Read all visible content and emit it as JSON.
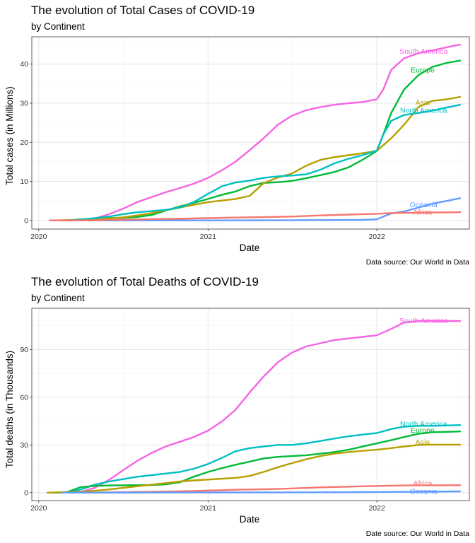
{
  "colors": {
    "Africa": "#F8766D",
    "Asia": "#B79F00",
    "Europe": "#00BA38",
    "North America": "#00BFC4",
    "Oceania": "#619CFF",
    "South America": "#F564E3"
  },
  "chart_data": [
    {
      "type": "line",
      "title": "The evolution of Total Cases of COVID-19",
      "subtitle": "by Continent",
      "xlabel": "Date",
      "ylabel": "Total cases (in Millions)",
      "caption": "Data source: Our World in Data",
      "xlim": [
        "2019-12-17",
        "2022-07-20"
      ],
      "ylim": [
        -2.2,
        47
      ],
      "x_ticks": [
        "2020-01-01",
        "2021-01-01",
        "2022-01-01"
      ],
      "x_tick_labels": [
        "2020",
        "2021",
        "2022"
      ],
      "y_ticks": [
        0,
        10,
        20,
        30,
        40
      ],
      "grid": true,
      "legend": "none (direct labels at line ends)",
      "series": [
        {
          "name": "South America",
          "x": [
            "2020-01-25",
            "2020-03-15",
            "2020-05-01",
            "2020-06-01",
            "2020-07-01",
            "2020-08-01",
            "2020-09-01",
            "2020-10-01",
            "2020-11-01",
            "2020-12-01",
            "2021-01-01",
            "2021-02-01",
            "2021-03-01",
            "2021-04-01",
            "2021-05-01",
            "2021-06-01",
            "2021-07-01",
            "2021-08-01",
            "2021-09-01",
            "2021-10-01",
            "2021-11-01",
            "2021-12-01",
            "2022-01-01",
            "2022-01-15",
            "2022-02-01",
            "2022-03-01",
            "2022-04-01",
            "2022-05-01",
            "2022-06-01",
            "2022-06-30"
          ],
          "values": [
            0,
            0,
            0.5,
            1.6,
            3.0,
            4.7,
            6.0,
            7.2,
            8.3,
            9.4,
            10.9,
            12.9,
            15.0,
            18.0,
            21.0,
            24.5,
            26.8,
            28.2,
            29.0,
            29.6,
            30.0,
            30.3,
            31.0,
            33.5,
            38.5,
            41.5,
            42.8,
            43.5,
            44.3,
            45.0
          ]
        },
        {
          "name": "Europe",
          "x": [
            "2020-01-25",
            "2020-03-01",
            "2020-04-01",
            "2020-05-01",
            "2020-06-01",
            "2020-07-01",
            "2020-08-01",
            "2020-09-01",
            "2020-10-01",
            "2020-11-01",
            "2020-12-01",
            "2021-01-01",
            "2021-02-01",
            "2021-03-01",
            "2021-04-01",
            "2021-05-01",
            "2021-06-01",
            "2021-07-01",
            "2021-08-01",
            "2021-09-01",
            "2021-10-01",
            "2021-11-01",
            "2021-12-01",
            "2022-01-01",
            "2022-01-15",
            "2022-02-01",
            "2022-03-01",
            "2022-04-01",
            "2022-05-01",
            "2022-06-01",
            "2022-06-30"
          ],
          "values": [
            0,
            0,
            0.3,
            0.5,
            0.6,
            0.7,
            0.9,
            1.4,
            2.5,
            3.6,
            4.5,
            5.5,
            6.6,
            7.4,
            8.8,
            9.6,
            9.8,
            10.1,
            10.8,
            11.6,
            12.4,
            13.6,
            15.5,
            17.8,
            22.0,
            27.5,
            33.5,
            37.2,
            39.3,
            40.3,
            40.9
          ]
        },
        {
          "name": "Asia",
          "x": [
            "2020-01-25",
            "2020-03-01",
            "2020-04-01",
            "2020-05-01",
            "2020-06-01",
            "2020-07-01",
            "2020-08-01",
            "2020-09-01",
            "2020-10-01",
            "2020-11-01",
            "2020-12-01",
            "2021-01-01",
            "2021-02-01",
            "2021-03-01",
            "2021-04-01",
            "2021-05-01",
            "2021-06-01",
            "2021-07-01",
            "2021-08-01",
            "2021-09-01",
            "2021-10-01",
            "2021-11-01",
            "2021-12-01",
            "2022-01-01",
            "2022-02-01",
            "2022-03-01",
            "2022-04-01",
            "2022-05-01",
            "2022-06-01",
            "2022-06-30"
          ],
          "values": [
            0,
            0.1,
            0.1,
            0.2,
            0.5,
            0.8,
            1.3,
            1.9,
            2.6,
            3.3,
            4.0,
            4.7,
            5.1,
            5.5,
            6.3,
            9.5,
            11.0,
            12.0,
            14.0,
            15.5,
            16.2,
            16.7,
            17.2,
            17.8,
            21.0,
            24.5,
            29.0,
            30.6,
            31.0,
            31.6
          ]
        },
        {
          "name": "North America",
          "x": [
            "2020-01-25",
            "2020-03-01",
            "2020-04-01",
            "2020-05-01",
            "2020-06-01",
            "2020-07-01",
            "2020-08-01",
            "2020-09-01",
            "2020-10-01",
            "2020-11-01",
            "2020-12-01",
            "2021-01-01",
            "2021-02-01",
            "2021-03-01",
            "2021-04-01",
            "2021-05-01",
            "2021-06-01",
            "2021-07-01",
            "2021-08-01",
            "2021-09-01",
            "2021-10-01",
            "2021-11-01",
            "2021-12-01",
            "2022-01-01",
            "2022-01-15",
            "2022-02-01",
            "2022-03-01",
            "2022-04-01",
            "2022-05-01",
            "2022-06-01",
            "2022-06-30"
          ],
          "values": [
            0,
            0,
            0.2,
            0.6,
            1.0,
            1.6,
            2.1,
            2.4,
            2.7,
            3.3,
            4.7,
            6.8,
            8.8,
            9.7,
            10.2,
            10.9,
            11.3,
            11.5,
            11.8,
            13.0,
            14.6,
            15.8,
            16.7,
            17.9,
            22.0,
            25.5,
            27.0,
            27.5,
            28.1,
            28.9,
            29.6
          ]
        },
        {
          "name": "Oceania",
          "x": [
            "2020-01-25",
            "2020-06-01",
            "2021-01-01",
            "2021-06-01",
            "2021-12-01",
            "2022-01-01",
            "2022-01-15",
            "2022-02-01",
            "2022-03-01",
            "2022-04-01",
            "2022-05-01",
            "2022-06-01",
            "2022-06-30"
          ],
          "values": [
            0,
            0,
            0.02,
            0.05,
            0.15,
            0.3,
            1.0,
            1.8,
            2.3,
            3.3,
            4.3,
            5.0,
            5.7
          ]
        },
        {
          "name": "Africa",
          "x": [
            "2020-01-25",
            "2020-05-01",
            "2020-07-01",
            "2020-09-01",
            "2020-11-01",
            "2021-01-01",
            "2021-03-01",
            "2021-05-01",
            "2021-07-01",
            "2021-09-01",
            "2021-11-01",
            "2022-01-01",
            "2022-02-01",
            "2022-04-01",
            "2022-06-30"
          ],
          "values": [
            0,
            0.05,
            0.2,
            0.35,
            0.45,
            0.6,
            0.75,
            0.85,
            1.0,
            1.3,
            1.5,
            1.7,
            1.9,
            2.0,
            2.1
          ]
        }
      ],
      "labels": [
        {
          "name": "South America",
          "text": "South America",
          "x": "2022-04-12",
          "y": 43.4
        },
        {
          "name": "Europe",
          "text": "Europe",
          "x": "2022-04-10",
          "y": 38.6
        },
        {
          "name": "Asia",
          "text": "Asia",
          "x": "2022-04-10",
          "y": 30.3
        },
        {
          "name": "North America",
          "text": "North America",
          "x": "2022-04-12",
          "y": 28.3
        },
        {
          "name": "Oceania",
          "text": "Oceania",
          "x": "2022-04-12",
          "y": 4.1
        },
        {
          "name": "Africa",
          "text": "Africa",
          "x": "2022-04-10",
          "y": 2.2
        }
      ]
    },
    {
      "type": "line",
      "title": "The evolution of Total Deaths of COVID-19",
      "subtitle": "by Continent",
      "xlabel": "Date",
      "ylabel": "Total deaths (in Thousands)",
      "caption": "Date source: Our World in Data",
      "xlim": [
        "2019-12-17",
        "2022-07-20"
      ],
      "ylim": [
        -5,
        116
      ],
      "x_ticks": [
        "2020-01-01",
        "2021-01-01",
        "2022-01-01"
      ],
      "x_tick_labels": [
        "2020",
        "2021",
        "2022"
      ],
      "y_ticks": [
        0,
        30,
        60,
        90
      ],
      "grid": true,
      "legend": "none (direct labels at line ends)",
      "series": [
        {
          "name": "South America",
          "x": [
            "2020-03-01",
            "2020-04-01",
            "2020-05-01",
            "2020-06-01",
            "2020-07-01",
            "2020-08-01",
            "2020-09-01",
            "2020-10-01",
            "2020-11-01",
            "2020-12-01",
            "2021-01-01",
            "2021-02-01",
            "2021-03-01",
            "2021-04-01",
            "2021-05-01",
            "2021-06-01",
            "2021-07-01",
            "2021-08-01",
            "2021-09-01",
            "2021-10-01",
            "2021-11-01",
            "2021-12-01",
            "2022-01-01",
            "2022-02-01",
            "2022-03-01",
            "2022-04-01",
            "2022-05-01",
            "2022-06-30"
          ],
          "values": [
            0,
            0.5,
            3,
            8,
            14,
            20,
            25,
            29,
            32,
            35,
            39,
            45,
            52,
            63,
            73,
            82,
            88,
            92,
            94,
            96,
            97,
            98,
            99,
            103,
            107,
            108,
            108,
            108
          ]
        },
        {
          "name": "North America",
          "x": [
            "2020-01-25",
            "2020-03-01",
            "2020-04-01",
            "2020-05-01",
            "2020-06-01",
            "2020-07-01",
            "2020-08-01",
            "2020-09-01",
            "2020-10-01",
            "2020-11-01",
            "2020-12-01",
            "2021-01-01",
            "2021-02-01",
            "2021-03-01",
            "2021-04-01",
            "2021-05-01",
            "2021-06-01",
            "2021-07-01",
            "2021-08-01",
            "2021-09-01",
            "2021-10-01",
            "2021-11-01",
            "2021-12-01",
            "2022-01-01",
            "2022-02-01",
            "2022-03-01",
            "2022-04-01",
            "2022-05-01",
            "2022-06-30"
          ],
          "values": [
            0,
            0,
            2,
            5,
            7,
            8.5,
            10,
            11,
            12,
            13,
            15,
            18,
            22,
            26,
            28,
            29,
            30,
            30,
            31,
            32.5,
            34,
            35.5,
            36.5,
            37.5,
            40,
            41.5,
            42,
            42,
            42.5
          ]
        },
        {
          "name": "Europe",
          "x": [
            "2020-02-10",
            "2020-03-01",
            "2020-04-01",
            "2020-05-01",
            "2020-06-01",
            "2020-07-01",
            "2020-08-01",
            "2020-09-01",
            "2020-10-01",
            "2020-11-01",
            "2020-12-01",
            "2021-01-01",
            "2021-02-01",
            "2021-03-01",
            "2021-04-01",
            "2021-05-01",
            "2021-06-01",
            "2021-07-01",
            "2021-08-01",
            "2021-09-01",
            "2021-10-01",
            "2021-11-01",
            "2021-12-01",
            "2022-01-01",
            "2022-02-01",
            "2022-03-01",
            "2022-04-01",
            "2022-05-01",
            "2022-06-30"
          ],
          "values": [
            0,
            0.2,
            3.5,
            4.2,
            4.5,
            4.6,
            4.7,
            4.8,
            5.2,
            6.5,
            10,
            13,
            15.5,
            17.5,
            19.5,
            21.5,
            22.5,
            23,
            23.5,
            24.5,
            25.5,
            27,
            29,
            31,
            33,
            35,
            37,
            38,
            38.5
          ]
        },
        {
          "name": "Asia",
          "x": [
            "2020-01-20",
            "2020-03-01",
            "2020-04-01",
            "2020-05-01",
            "2020-06-01",
            "2020-07-01",
            "2020-08-01",
            "2020-09-01",
            "2020-10-01",
            "2020-11-01",
            "2020-12-01",
            "2021-01-01",
            "2021-02-01",
            "2021-03-01",
            "2021-04-01",
            "2021-05-01",
            "2021-06-01",
            "2021-07-01",
            "2021-08-01",
            "2021-09-01",
            "2021-10-01",
            "2021-11-01",
            "2021-12-01",
            "2022-01-01",
            "2022-02-01",
            "2022-03-01",
            "2022-04-01",
            "2022-05-01",
            "2022-06-30"
          ],
          "values": [
            0,
            0.3,
            0.6,
            1.2,
            2,
            3,
            4,
            5,
            6,
            7,
            7.7,
            8.2,
            8.8,
            9.3,
            10.5,
            13,
            16,
            18.5,
            21,
            23,
            24.5,
            25.5,
            26.3,
            27,
            28,
            29,
            30,
            30.2,
            30.2
          ]
        },
        {
          "name": "Africa",
          "x": [
            "2020-03-01",
            "2020-06-01",
            "2020-09-01",
            "2020-12-01",
            "2021-03-01",
            "2021-06-01",
            "2021-09-01",
            "2021-12-01",
            "2022-03-01",
            "2022-06-30"
          ],
          "values": [
            0,
            0.2,
            0.5,
            1,
            1.8,
            2.3,
            3.3,
            4,
            4.5,
            4.7
          ]
        },
        {
          "name": "Oceania",
          "x": [
            "2020-02-20",
            "2021-01-01",
            "2021-09-01",
            "2022-01-01",
            "2022-06-30"
          ],
          "values": [
            0,
            0.1,
            0.2,
            0.4,
            0.8
          ]
        }
      ],
      "labels": [
        {
          "name": "South America",
          "text": "South America",
          "x": "2022-04-12",
          "y": 108.5
        },
        {
          "name": "North America",
          "text": "North America",
          "x": "2022-04-12",
          "y": 43.5
        },
        {
          "name": "Europe",
          "text": "Europe",
          "x": "2022-04-10",
          "y": 39.5
        },
        {
          "name": "Asia",
          "text": "Asia",
          "x": "2022-04-10",
          "y": 32.2
        },
        {
          "name": "Africa",
          "text": "Africa",
          "x": "2022-04-10",
          "y": 6.2
        },
        {
          "name": "Oceania",
          "text": "Oceania",
          "x": "2022-04-12",
          "y": 1.0
        }
      ]
    }
  ]
}
